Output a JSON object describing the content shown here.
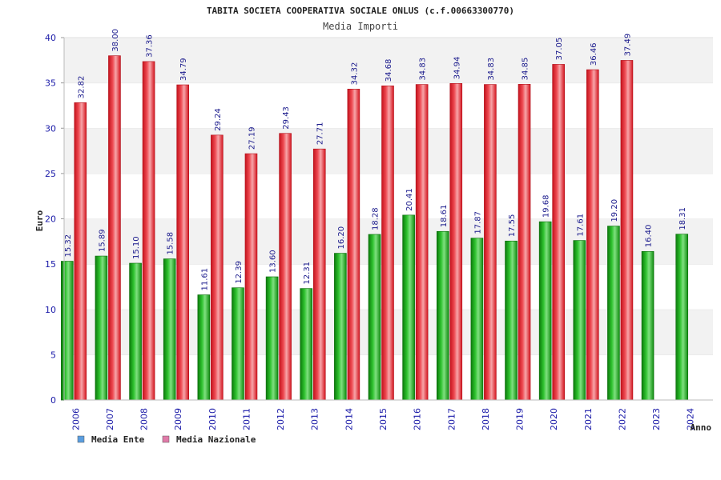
{
  "chart_data": {
    "type": "bar",
    "title": "TABITA SOCIETA COOPERATIVA SOCIALE ONLUS (c.f.00663300770)",
    "subtitle": "Media Importi",
    "ylabel": "Euro",
    "xlabel": "Anno",
    "ylim": [
      0,
      40
    ],
    "yticks": [
      0,
      5,
      10,
      15,
      20,
      25,
      30,
      35,
      40
    ],
    "grid": "horizontal bands",
    "legend_position": "bottom-left",
    "categories": [
      "2006",
      "2007",
      "2008",
      "2009",
      "2010",
      "2011",
      "2012",
      "2013",
      "2014",
      "2015",
      "2016",
      "2017",
      "2018",
      "2019",
      "2020",
      "2021",
      "2022",
      "2023",
      "2024"
    ],
    "series": [
      {
        "name": "Media Ente",
        "color": "#1fa21f",
        "legend_color": "#5a9ee0",
        "values": [
          15.32,
          15.89,
          15.1,
          15.58,
          11.61,
          12.39,
          13.6,
          12.31,
          16.2,
          18.28,
          20.41,
          18.61,
          17.87,
          17.55,
          19.68,
          17.61,
          19.2,
          16.4,
          18.31
        ],
        "labels": [
          "15.32",
          "15.89",
          "15.10",
          "15.58",
          "11.61",
          "12.39",
          "13.60",
          "12.31",
          "16.20",
          "18.28",
          "20.41",
          "18.61",
          "17.87",
          "17.55",
          "19.68",
          "17.61",
          "19.20",
          "16.40",
          "18.31"
        ]
      },
      {
        "name": "Media Nazionale",
        "color": "#e8202a",
        "legend_color": "#e07aa8",
        "values": [
          32.82,
          38.0,
          37.36,
          34.79,
          29.24,
          27.19,
          29.43,
          27.71,
          34.32,
          34.68,
          34.83,
          34.94,
          34.83,
          34.85,
          37.05,
          36.46,
          37.49,
          null,
          null
        ],
        "labels": [
          "32.82",
          "38.00",
          "37.36",
          "34.79",
          "29.24",
          "27.19",
          "29.43",
          "27.71",
          "34.32",
          "34.68",
          "34.83",
          "34.94",
          "34.83",
          "34.85",
          "37.05",
          "36.46",
          "37.49",
          null,
          null
        ]
      }
    ]
  }
}
